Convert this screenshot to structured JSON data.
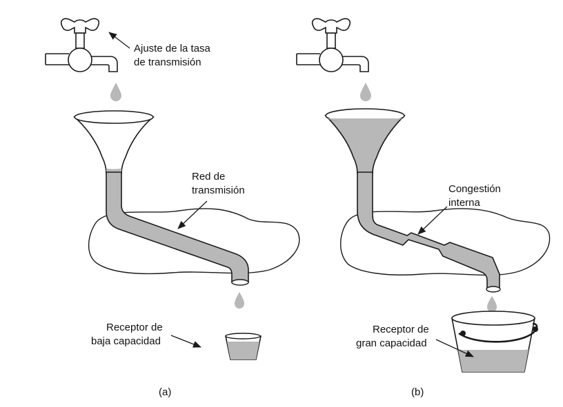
{
  "panel_a": {
    "label_faucet_1": "Ajuste de la tasa",
    "label_faucet_2": "de transmisión",
    "label_network_1": "Red de",
    "label_network_2": "transmisión",
    "label_receiver_1": "Receptor de",
    "label_receiver_2": "baja capacidad",
    "caption": "(a)"
  },
  "panel_b": {
    "label_congestion_1": "Congestión",
    "label_congestion_2": "interna",
    "label_receiver_1": "Receptor de",
    "label_receiver_2": "gran capacidad",
    "caption": "(b)"
  },
  "colors": {
    "line": "#1a1a1a",
    "water": "#b8b8b8"
  }
}
